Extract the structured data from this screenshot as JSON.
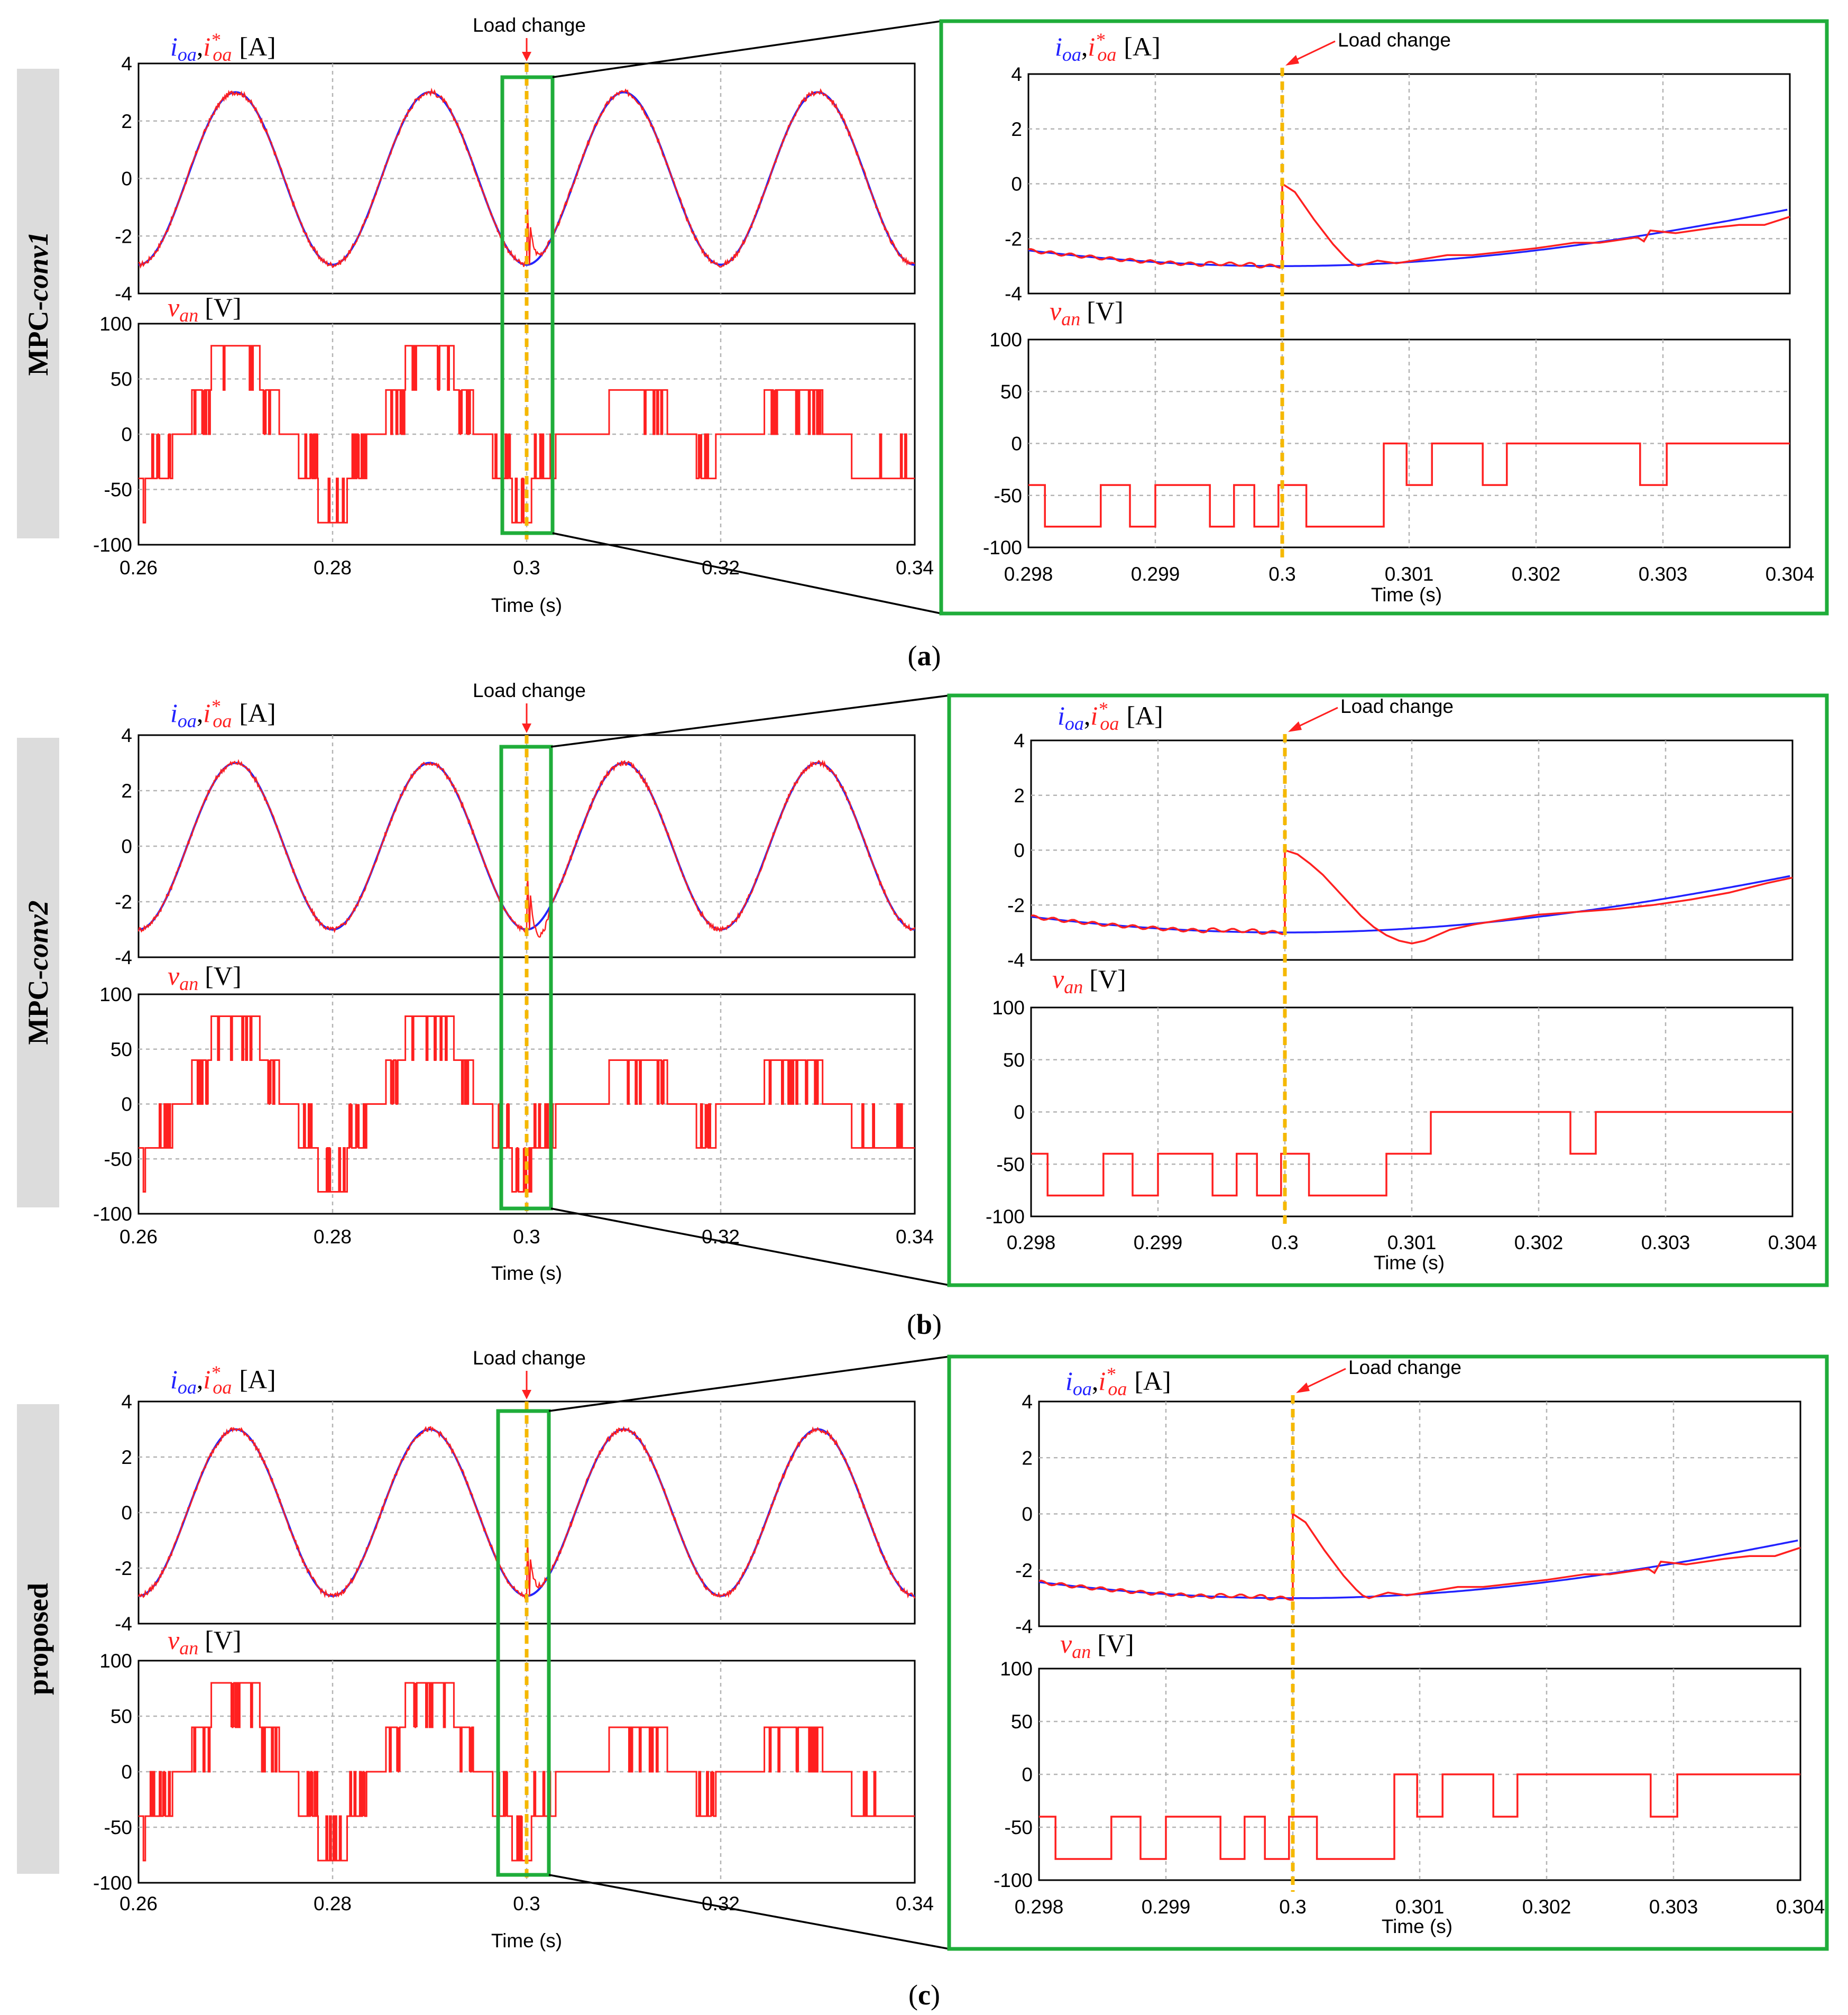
{
  "panels": [
    {
      "id": "a",
      "row_label": "MPC-",
      "row_label_italic": "conv1",
      "caption": "(a)",
      "peak_zoom": 0.3,
      "zoom_min": -3.0,
      "zoom_i": [
        [
          0.3,
          0.0
        ],
        [
          0.3001,
          -0.3
        ],
        [
          0.30025,
          -1.3
        ],
        [
          0.3004,
          -2.2
        ],
        [
          0.3005,
          -2.7
        ],
        [
          0.30055,
          -2.9
        ],
        [
          0.3006,
          -3.0
        ],
        [
          0.30075,
          -2.8
        ],
        [
          0.3009,
          -2.9
        ],
        [
          0.3011,
          -2.75
        ],
        [
          0.3013,
          -2.6
        ],
        [
          0.3015,
          -2.6
        ],
        [
          0.3017,
          -2.5
        ],
        [
          0.302,
          -2.35
        ],
        [
          0.3023,
          -2.15
        ],
        [
          0.3025,
          -2.15
        ],
        [
          0.3028,
          -1.95
        ],
        [
          0.30285,
          -2.1
        ],
        [
          0.3029,
          -1.7
        ],
        [
          0.3031,
          -1.8
        ],
        [
          0.3034,
          -1.6
        ],
        [
          0.3036,
          -1.5
        ],
        [
          0.3038,
          -1.5
        ],
        [
          0.304,
          -1.2
        ]
      ],
      "zoom_v": [
        [
          0.298,
          -40
        ],
        [
          0.29813,
          -40
        ],
        [
          0.29813,
          -80
        ],
        [
          0.29857,
          -80
        ],
        [
          0.29857,
          -40
        ],
        [
          0.2988,
          -40
        ],
        [
          0.2988,
          -80
        ],
        [
          0.299,
          -80
        ],
        [
          0.299,
          -40
        ],
        [
          0.29943,
          -40
        ],
        [
          0.29943,
          -80
        ],
        [
          0.29962,
          -80
        ],
        [
          0.29962,
          -40
        ],
        [
          0.29978,
          -40
        ],
        [
          0.29978,
          -80
        ],
        [
          0.29997,
          -80
        ],
        [
          0.29997,
          -40
        ],
        [
          0.30019,
          -40
        ],
        [
          0.30019,
          -80
        ],
        [
          0.3008,
          -80
        ],
        [
          0.3008,
          0
        ],
        [
          0.30098,
          0
        ],
        [
          0.30098,
          -40
        ],
        [
          0.30118,
          -40
        ],
        [
          0.30118,
          0
        ],
        [
          0.30158,
          0
        ],
        [
          0.30158,
          -40
        ],
        [
          0.30177,
          -40
        ],
        [
          0.30177,
          0
        ],
        [
          0.30282,
          0
        ],
        [
          0.30282,
          -40
        ],
        [
          0.30303,
          -40
        ],
        [
          0.30303,
          0
        ],
        [
          0.304,
          0
        ]
      ]
    },
    {
      "id": "b",
      "row_label": "MPC-",
      "row_label_italic": "conv2",
      "caption": "(b)",
      "peak_zoom": 0.3,
      "zoom_min": -3.4,
      "zoom_i": [
        [
          0.3,
          0.0
        ],
        [
          0.3001,
          -0.15
        ],
        [
          0.3002,
          -0.5
        ],
        [
          0.3003,
          -0.9
        ],
        [
          0.3004,
          -1.4
        ],
        [
          0.3005,
          -1.9
        ],
        [
          0.3006,
          -2.4
        ],
        [
          0.3007,
          -2.8
        ],
        [
          0.3008,
          -3.1
        ],
        [
          0.3009,
          -3.3
        ],
        [
          0.301,
          -3.4
        ],
        [
          0.3011,
          -3.3
        ],
        [
          0.3012,
          -3.1
        ],
        [
          0.3013,
          -2.9
        ],
        [
          0.3015,
          -2.7
        ],
        [
          0.3017,
          -2.55
        ],
        [
          0.302,
          -2.35
        ],
        [
          0.3023,
          -2.25
        ],
        [
          0.3026,
          -2.15
        ],
        [
          0.3029,
          -2.0
        ],
        [
          0.3032,
          -1.8
        ],
        [
          0.3035,
          -1.55
        ],
        [
          0.3038,
          -1.2
        ],
        [
          0.304,
          -1.0
        ]
      ],
      "zoom_v": [
        [
          0.298,
          -40
        ],
        [
          0.29813,
          -40
        ],
        [
          0.29813,
          -80
        ],
        [
          0.29857,
          -80
        ],
        [
          0.29857,
          -40
        ],
        [
          0.2988,
          -40
        ],
        [
          0.2988,
          -80
        ],
        [
          0.299,
          -80
        ],
        [
          0.299,
          -40
        ],
        [
          0.29943,
          -40
        ],
        [
          0.29943,
          -80
        ],
        [
          0.29962,
          -80
        ],
        [
          0.29962,
          -40
        ],
        [
          0.29978,
          -40
        ],
        [
          0.29978,
          -80
        ],
        [
          0.29997,
          -80
        ],
        [
          0.29997,
          -40
        ],
        [
          0.30019,
          -40
        ],
        [
          0.30019,
          -80
        ],
        [
          0.3008,
          -80
        ],
        [
          0.3008,
          -40
        ],
        [
          0.30115,
          -40
        ],
        [
          0.30115,
          0
        ],
        [
          0.30225,
          0
        ],
        [
          0.30225,
          -40
        ],
        [
          0.30245,
          -40
        ],
        [
          0.30245,
          0
        ],
        [
          0.304,
          0
        ]
      ]
    },
    {
      "id": "c",
      "row_label": "proposed",
      "row_label_italic": "",
      "caption": "(c)",
      "peak_zoom": 0.3,
      "zoom_min": -3.0,
      "zoom_i": [
        [
          0.3,
          0.0
        ],
        [
          0.3001,
          -0.3
        ],
        [
          0.30025,
          -1.3
        ],
        [
          0.3004,
          -2.2
        ],
        [
          0.3005,
          -2.7
        ],
        [
          0.30055,
          -2.9
        ],
        [
          0.3006,
          -3.0
        ],
        [
          0.30075,
          -2.8
        ],
        [
          0.3009,
          -2.9
        ],
        [
          0.3011,
          -2.75
        ],
        [
          0.3013,
          -2.6
        ],
        [
          0.3015,
          -2.6
        ],
        [
          0.3017,
          -2.5
        ],
        [
          0.302,
          -2.35
        ],
        [
          0.3023,
          -2.15
        ],
        [
          0.3025,
          -2.15
        ],
        [
          0.3028,
          -1.95
        ],
        [
          0.30285,
          -2.1
        ],
        [
          0.3029,
          -1.7
        ],
        [
          0.3031,
          -1.8
        ],
        [
          0.3034,
          -1.6
        ],
        [
          0.3036,
          -1.5
        ],
        [
          0.3038,
          -1.5
        ],
        [
          0.304,
          -1.2
        ]
      ],
      "zoom_v": [
        [
          0.298,
          -40
        ],
        [
          0.29813,
          -40
        ],
        [
          0.29813,
          -80
        ],
        [
          0.29857,
          -80
        ],
        [
          0.29857,
          -40
        ],
        [
          0.2988,
          -40
        ],
        [
          0.2988,
          -80
        ],
        [
          0.299,
          -80
        ],
        [
          0.299,
          -40
        ],
        [
          0.29943,
          -40
        ],
        [
          0.29943,
          -80
        ],
        [
          0.29962,
          -80
        ],
        [
          0.29962,
          -40
        ],
        [
          0.29978,
          -40
        ],
        [
          0.29978,
          -80
        ],
        [
          0.29997,
          -80
        ],
        [
          0.29997,
          -40
        ],
        [
          0.30019,
          -40
        ],
        [
          0.30019,
          -80
        ],
        [
          0.3008,
          -80
        ],
        [
          0.3008,
          0
        ],
        [
          0.30098,
          0
        ],
        [
          0.30098,
          -40
        ],
        [
          0.30118,
          -40
        ],
        [
          0.30118,
          0
        ],
        [
          0.30158,
          0
        ],
        [
          0.30158,
          -40
        ],
        [
          0.30177,
          -40
        ],
        [
          0.30177,
          0
        ],
        [
          0.30282,
          0
        ],
        [
          0.30282,
          -40
        ],
        [
          0.30303,
          -40
        ],
        [
          0.30303,
          0
        ],
        [
          0.304,
          0
        ]
      ]
    }
  ],
  "chart_data": [
    {
      "type": "line",
      "title": "",
      "xlabel": "Time (s)",
      "ylabel": "ioa, i*oa [A]",
      "xlim": [
        0.26,
        0.34
      ],
      "ylim": [
        -4,
        4
      ],
      "xticks": [
        "0.26",
        "0.28",
        "0.3",
        "0.32",
        "0.34"
      ],
      "yticks": [
        "4",
        "2",
        "0",
        "-2",
        "-4"
      ],
      "grid": true,
      "series": [
        {
          "name": "ioa",
          "color": "#2222ff",
          "shape": "sinusoid",
          "amplitude": 3.0,
          "frequency_hz": 50,
          "peak_at": 0.27
        },
        {
          "name": "i*oa",
          "color": "#ff2020",
          "shape": "sinusoid with transient after load change",
          "amplitude": 3.0,
          "frequency_hz": 50
        }
      ],
      "annotation": {
        "text": "Load change",
        "x": 0.3
      }
    },
    {
      "type": "line",
      "title": "",
      "xlabel": "Time (s)",
      "ylabel": "van [V]",
      "xlim": [
        0.26,
        0.34
      ],
      "ylim": [
        -100,
        100
      ],
      "xticks": [
        "0.26",
        "0.28",
        "0.3",
        "0.32",
        "0.34"
      ],
      "yticks": [
        "100",
        "50",
        "0",
        "-50",
        "-100"
      ],
      "grid": true,
      "series": [
        {
          "name": "van",
          "color": "#ff2020",
          "shape": "multilevel staircase",
          "levels": [
            -80,
            -40,
            0,
            40,
            80
          ],
          "after_load_change_levels": [
            -40,
            0,
            40
          ]
        }
      ]
    },
    {
      "type": "line",
      "title": "",
      "xlabel": "Time (s)",
      "ylabel": "ioa, i*oa [A]",
      "xlim": [
        0.298,
        0.304
      ],
      "ylim": [
        -4,
        4
      ],
      "xticks": [
        "0.298",
        "0.299",
        "0.3",
        "0.301",
        "0.302",
        "0.303",
        "0.304"
      ],
      "yticks": [
        "4",
        "2",
        "0",
        "-2",
        "-4"
      ],
      "grid": true,
      "series": [
        {
          "name": "ioa",
          "color": "#2222ff"
        },
        {
          "name": "i*oa",
          "color": "#ff2020"
        }
      ],
      "annotation": {
        "text": "Load change",
        "x": 0.3
      }
    },
    {
      "type": "line",
      "title": "",
      "xlabel": "Time (s)",
      "ylabel": "van [V]",
      "xlim": [
        0.298,
        0.304
      ],
      "ylim": [
        -100,
        100
      ],
      "xticks": [
        "0.298",
        "0.299",
        "0.3",
        "0.301",
        "0.302",
        "0.303",
        "0.304"
      ],
      "yticks": [
        "100",
        "50",
        "0",
        "-50",
        "-100"
      ],
      "grid": true,
      "series": [
        {
          "name": "van",
          "color": "#ff2020"
        }
      ]
    }
  ],
  "labels": {
    "load_change": "Load change",
    "time_label": "Time (s)",
    "current_a": "i",
    "current_sub": "oa",
    "star": "*",
    "comma": ",",
    "amp_unit": "[A]",
    "volt_v": "v",
    "volt_sub": "an",
    "volt_unit": "[V]"
  },
  "colors": {
    "measured": "#2222ff",
    "reference": "#ff2020",
    "marker": "#f5b800",
    "zoom_box": "#1fad3a",
    "grid": "#b4b4b4",
    "label_bg": "#dcdcdc"
  }
}
